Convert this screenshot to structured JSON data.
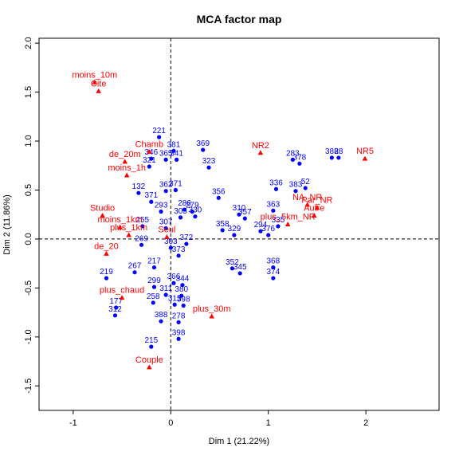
{
  "chart_data": {
    "type": "scatter",
    "title": "MCA factor map",
    "xlabel": "Dim 1 (21.22%)",
    "ylabel": "Dim 2 (11.86%)",
    "xlim": [
      -1.35,
      2.75
    ],
    "ylim": [
      -1.75,
      2.05
    ],
    "xticks": [
      -1,
      0,
      1,
      2
    ],
    "yticks": [
      -1.5,
      -1.0,
      -0.5,
      0.0,
      0.5,
      1.0,
      1.5,
      2.0
    ],
    "reference_lines": {
      "x": 0,
      "y": 0,
      "style": "dashed"
    },
    "colors": {
      "individuals": "#0000ff",
      "categories": "#ff0000",
      "axis": "#000000"
    },
    "individuals": [
      {
        "label": "221",
        "x": -0.12,
        "y": 1.04
      },
      {
        "label": "381",
        "x": 0.03,
        "y": 0.9
      },
      {
        "label": "365",
        "x": -0.05,
        "y": 0.81
      },
      {
        "label": "341",
        "x": 0.06,
        "y": 0.81
      },
      {
        "label": "346",
        "x": -0.2,
        "y": 0.82
      },
      {
        "label": "321",
        "x": -0.22,
        "y": 0.74
      },
      {
        "label": "369",
        "x": 0.33,
        "y": 0.91
      },
      {
        "label": "323",
        "x": 0.39,
        "y": 0.73
      },
      {
        "label": "283",
        "x": 1.25,
        "y": 0.81
      },
      {
        "label": "378",
        "x": 1.32,
        "y": 0.77
      },
      {
        "label": "388",
        "x": 1.65,
        "y": 0.83
      },
      {
        "label": "28",
        "x": 1.72,
        "y": 0.83
      },
      {
        "label": "336",
        "x": 1.08,
        "y": 0.51
      },
      {
        "label": "383",
        "x": 1.28,
        "y": 0.49
      },
      {
        "label": "52",
        "x": 1.38,
        "y": 0.52
      },
      {
        "label": "356",
        "x": 0.49,
        "y": 0.42
      },
      {
        "label": "362",
        "x": -0.05,
        "y": 0.49
      },
      {
        "label": "371",
        "x": 0.05,
        "y": 0.5
      },
      {
        "label": "132",
        "x": -0.33,
        "y": 0.47
      },
      {
        "label": "371",
        "x": -0.2,
        "y": 0.38
      },
      {
        "label": "310",
        "x": 0.7,
        "y": 0.25
      },
      {
        "label": "357",
        "x": 0.76,
        "y": 0.21
      },
      {
        "label": "330",
        "x": 0.25,
        "y": 0.23
      },
      {
        "label": "305",
        "x": 0.1,
        "y": 0.22
      },
      {
        "label": "279",
        "x": 0.22,
        "y": 0.28
      },
      {
        "label": "286",
        "x": 0.14,
        "y": 0.3
      },
      {
        "label": "363",
        "x": 1.05,
        "y": 0.29
      },
      {
        "label": "335",
        "x": 1.1,
        "y": 0.13
      },
      {
        "label": "294",
        "x": 0.92,
        "y": 0.08
      },
      {
        "label": "376",
        "x": 1.0,
        "y": 0.04
      },
      {
        "label": "293",
        "x": -0.1,
        "y": 0.28
      },
      {
        "label": "255",
        "x": -0.29,
        "y": 0.13
      },
      {
        "label": "307",
        "x": -0.05,
        "y": 0.11
      },
      {
        "label": "358",
        "x": 0.53,
        "y": 0.09
      },
      {
        "label": "329",
        "x": 0.65,
        "y": 0.04
      },
      {
        "label": "303",
        "x": 0.0,
        "y": -0.09
      },
      {
        "label": "372",
        "x": 0.16,
        "y": -0.05
      },
      {
        "label": "373",
        "x": 0.08,
        "y": -0.17
      },
      {
        "label": "269",
        "x": -0.3,
        "y": -0.06
      },
      {
        "label": "352",
        "x": 0.63,
        "y": -0.3
      },
      {
        "label": "345",
        "x": 0.71,
        "y": -0.35
      },
      {
        "label": "368",
        "x": 1.05,
        "y": -0.29
      },
      {
        "label": "374",
        "x": 1.05,
        "y": -0.4
      },
      {
        "label": "217",
        "x": -0.17,
        "y": -0.29
      },
      {
        "label": "267",
        "x": -0.37,
        "y": -0.34
      },
      {
        "label": "219",
        "x": -0.66,
        "y": -0.4
      },
      {
        "label": "299",
        "x": -0.17,
        "y": -0.49
      },
      {
        "label": "366",
        "x": 0.03,
        "y": -0.45
      },
      {
        "label": "344",
        "x": 0.12,
        "y": -0.47
      },
      {
        "label": "311",
        "x": -0.05,
        "y": -0.57
      },
      {
        "label": "380",
        "x": 0.11,
        "y": -0.58
      },
      {
        "label": "315",
        "x": 0.04,
        "y": -0.67
      },
      {
        "label": "398",
        "x": 0.13,
        "y": -0.68
      },
      {
        "label": "177",
        "x": -0.56,
        "y": -0.7
      },
      {
        "label": "312",
        "x": -0.57,
        "y": -0.78
      },
      {
        "label": "258",
        "x": -0.18,
        "y": -0.65
      },
      {
        "label": "278",
        "x": 0.08,
        "y": -0.85
      },
      {
        "label": "398",
        "x": 0.08,
        "y": -1.02
      },
      {
        "label": "388",
        "x": -0.1,
        "y": -0.84
      },
      {
        "label": "215",
        "x": -0.2,
        "y": -1.1
      }
    ],
    "categories": [
      {
        "label": "moins_10m",
        "x": -0.78,
        "y": 1.6
      },
      {
        "label": "Cite",
        "x": -0.74,
        "y": 1.51
      },
      {
        "label": "Chamb",
        "x": -0.22,
        "y": 0.89
      },
      {
        "label": "de_20m",
        "x": -0.47,
        "y": 0.79
      },
      {
        "label": "moins_1h",
        "x": -0.45,
        "y": 0.65
      },
      {
        "label": "Studio",
        "x": -0.7,
        "y": 0.24
      },
      {
        "label": "moins_1km",
        "x": -0.52,
        "y": 0.12
      },
      {
        "label": "plus_1km",
        "x": -0.43,
        "y": 0.04
      },
      {
        "label": "Seul",
        "x": -0.04,
        "y": 0.02
      },
      {
        "label": "de_20",
        "x": -0.66,
        "y": -0.15
      },
      {
        "label": "plus_chaud",
        "x": -0.5,
        "y": -0.6
      },
      {
        "label": "plus_30m",
        "x": 0.42,
        "y": -0.79
      },
      {
        "label": "Couple",
        "x": -0.22,
        "y": -1.31
      },
      {
        "label": "NR2",
        "x": 0.92,
        "y": 0.88
      },
      {
        "label": "NR5",
        "x": 1.99,
        "y": 0.82
      },
      {
        "label": "NA_NR",
        "x": 1.4,
        "y": 0.35
      },
      {
        "label": "Par_NR",
        "x": 1.5,
        "y": 0.32
      },
      {
        "label": "Autre",
        "x": 1.47,
        "y": 0.24
      },
      {
        "label": "plus_5km_NR",
        "x": 1.2,
        "y": 0.15
      }
    ]
  }
}
